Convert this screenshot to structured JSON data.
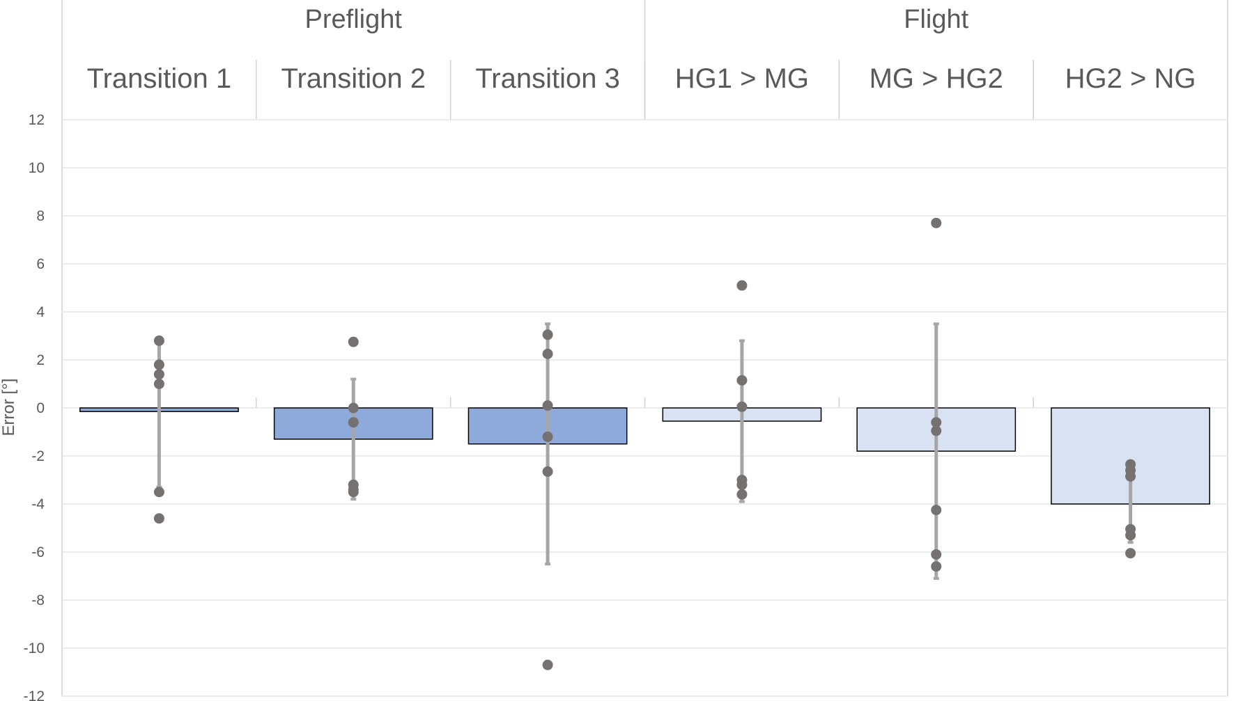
{
  "chart_data": {
    "type": "bar",
    "ylabel": "Error [°]",
    "ylim": [
      -12,
      12
    ],
    "yticks": [
      12,
      10,
      8,
      6,
      4,
      2,
      0,
      -2,
      -4,
      -6,
      -8,
      -10,
      -12
    ],
    "groups": [
      {
        "label": "Preflight",
        "span": 3
      },
      {
        "label": "Flight",
        "span": 3
      }
    ],
    "categories": [
      {
        "label": "Transition 1",
        "group": "Preflight",
        "mean": -0.15,
        "error_low": -3.3,
        "error_high": 2.8,
        "points": [
          2.8,
          1.8,
          1.4,
          1.0,
          -3.5,
          -4.6
        ]
      },
      {
        "label": "Transition 2",
        "group": "Preflight",
        "mean": -1.3,
        "error_low": -3.8,
        "error_high": 1.2,
        "points": [
          2.75,
          0.0,
          -0.6,
          -3.2,
          -3.4,
          -3.5
        ]
      },
      {
        "label": "Transition 3",
        "group": "Preflight",
        "mean": -1.5,
        "error_low": -6.5,
        "error_high": 3.5,
        "points": [
          3.05,
          2.25,
          0.1,
          -1.2,
          -2.65,
          -10.7
        ]
      },
      {
        "label": "HG1  > MG",
        "group": "Flight",
        "mean": -0.55,
        "error_low": -3.9,
        "error_high": 2.8,
        "points": [
          5.1,
          1.15,
          0.05,
          -3.0,
          -3.2,
          -3.6
        ]
      },
      {
        "label": "MG  > HG2",
        "group": "Flight",
        "mean": -1.8,
        "error_low": -7.1,
        "error_high": 3.5,
        "points": [
          7.7,
          -0.6,
          -0.95,
          -4.25,
          -6.1,
          -6.6
        ]
      },
      {
        "label": "HG2 > NG",
        "group": "Flight",
        "mean": -4.0,
        "error_low": -5.6,
        "error_high": -2.4,
        "points": [
          -2.35,
          -2.6,
          -2.85,
          -5.05,
          -5.3,
          -6.05
        ]
      }
    ],
    "colors": {
      "Preflight": "#8eaadb",
      "Flight": "#d9e2f3",
      "bar_edge": "#000000",
      "error_bar": "#a6a6a6",
      "point": "#767171"
    }
  }
}
